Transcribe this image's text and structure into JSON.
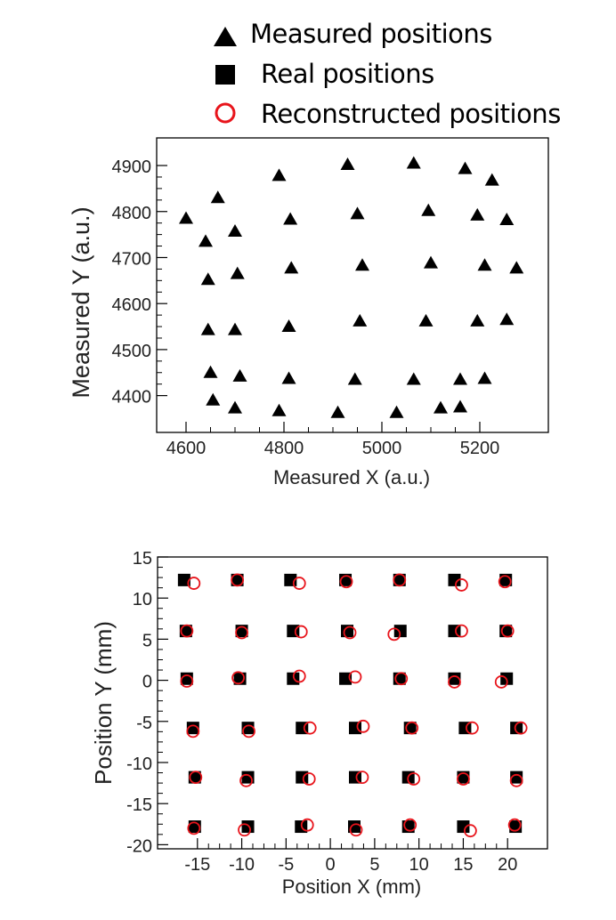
{
  "legend": {
    "items": [
      {
        "label": "Measured positions",
        "marker": "triangle",
        "color": "#000000"
      },
      {
        "label": "Real positions",
        "marker": "square",
        "color": "#000000"
      },
      {
        "label": "Reconstructed positions",
        "marker": "circle-open",
        "color": "#e8141b"
      }
    ]
  },
  "chart_data": [
    {
      "type": "scatter",
      "title": "",
      "xlabel": "Measured X (a.u.)",
      "ylabel": "Measured Y (a.u.)",
      "xlim": [
        4540,
        5340
      ],
      "ylim": [
        4320,
        4960
      ],
      "xticks": [
        4600,
        4800,
        5000,
        5200
      ],
      "yticks": [
        4400,
        4500,
        4600,
        4700,
        4800,
        4900
      ],
      "grid": false,
      "series": [
        {
          "name": "Measured positions",
          "marker": "triangle",
          "color": "#000000",
          "points": [
            [
              4600,
              4785
            ],
            [
              4665,
              4830
            ],
            [
              4640,
              4735
            ],
            [
              4700,
              4757
            ],
            [
              4790,
              4878
            ],
            [
              4930,
              4902
            ],
            [
              5065,
              4905
            ],
            [
              5170,
              4893
            ],
            [
              5225,
              4868
            ],
            [
              4813,
              4783
            ],
            [
              4950,
              4795
            ],
            [
              5095,
              4802
            ],
            [
              5195,
              4792
            ],
            [
              5255,
              4782
            ],
            [
              4645,
              4652
            ],
            [
              4705,
              4665
            ],
            [
              4815,
              4677
            ],
            [
              4960,
              4683
            ],
            [
              5100,
              4688
            ],
            [
              5210,
              4683
            ],
            [
              5275,
              4677
            ],
            [
              4645,
              4543
            ],
            [
              4700,
              4543
            ],
            [
              4810,
              4550
            ],
            [
              4955,
              4562
            ],
            [
              5090,
              4562
            ],
            [
              5195,
              4562
            ],
            [
              5255,
              4565
            ],
            [
              4650,
              4450
            ],
            [
              4710,
              4442
            ],
            [
              4810,
              4437
            ],
            [
              4945,
              4435
            ],
            [
              5065,
              4435
            ],
            [
              5160,
              4435
            ],
            [
              5210,
              4437
            ],
            [
              4655,
              4390
            ],
            [
              4700,
              4373
            ],
            [
              4790,
              4367
            ],
            [
              4910,
              4363
            ],
            [
              5030,
              4363
            ],
            [
              5120,
              4373
            ],
            [
              5160,
              4375
            ]
          ]
        }
      ]
    },
    {
      "type": "scatter",
      "title": "",
      "xlabel": "Position X (mm)",
      "ylabel": "Position Y (mm)",
      "xlim": [
        -19.5,
        24.5
      ],
      "ylim": [
        -20.5,
        15
      ],
      "xticks": [
        -15,
        -10,
        -5,
        0,
        5,
        10,
        15,
        20
      ],
      "yticks": [
        -20,
        -15,
        -10,
        -5,
        0,
        5,
        10,
        15
      ],
      "grid": false,
      "series": [
        {
          "name": "Real positions",
          "marker": "square",
          "color": "#000000",
          "points": [
            [
              -16.5,
              12.2
            ],
            [
              -10.5,
              12.2
            ],
            [
              -4.5,
              12.2
            ],
            [
              1.7,
              12.2
            ],
            [
              7.8,
              12.2
            ],
            [
              14,
              12.2
            ],
            [
              19.8,
              12.2
            ],
            [
              -16.3,
              6
            ],
            [
              -10,
              6
            ],
            [
              -4.2,
              6
            ],
            [
              1.9,
              6
            ],
            [
              7.9,
              6
            ],
            [
              14,
              6
            ],
            [
              19.8,
              6
            ],
            [
              -16.2,
              0.2
            ],
            [
              -10.2,
              0.2
            ],
            [
              -4.2,
              0.2
            ],
            [
              1.7,
              0.2
            ],
            [
              7.8,
              0.2
            ],
            [
              14,
              0.2
            ],
            [
              19.9,
              0.2
            ],
            [
              -15.5,
              -5.8
            ],
            [
              -9.3,
              -5.8
            ],
            [
              -3.2,
              -5.8
            ],
            [
              2.8,
              -5.8
            ],
            [
              9,
              -5.8
            ],
            [
              15.2,
              -5.8
            ],
            [
              21,
              -5.8
            ],
            [
              -15.3,
              -11.8
            ],
            [
              -9.3,
              -11.8
            ],
            [
              -3.2,
              -11.8
            ],
            [
              2.8,
              -11.8
            ],
            [
              8.8,
              -11.8
            ],
            [
              15,
              -11.8
            ],
            [
              21,
              -11.8
            ],
            [
              -15.3,
              -17.8
            ],
            [
              -9.3,
              -17.8
            ],
            [
              -3.3,
              -17.8
            ],
            [
              2.7,
              -17.8
            ],
            [
              8.8,
              -17.8
            ],
            [
              15,
              -17.8
            ],
            [
              20.9,
              -17.8
            ]
          ]
        },
        {
          "name": "Reconstructed positions",
          "marker": "circle-open",
          "color": "#e8141b",
          "points": [
            [
              -15.4,
              11.8
            ],
            [
              -10.5,
              12.2
            ],
            [
              -3.5,
              11.8
            ],
            [
              1.8,
              12
            ],
            [
              7.8,
              12.2
            ],
            [
              14.8,
              11.6
            ],
            [
              19.7,
              12
            ],
            [
              -16.2,
              6
            ],
            [
              -10,
              5.8
            ],
            [
              -3.3,
              5.9
            ],
            [
              2.2,
              5.8
            ],
            [
              7.2,
              5.6
            ],
            [
              14.8,
              6
            ],
            [
              20,
              6
            ],
            [
              -16.2,
              -0.1
            ],
            [
              -10.4,
              0.3
            ],
            [
              -3.5,
              0.5
            ],
            [
              2.8,
              0.4
            ],
            [
              8,
              0.2
            ],
            [
              14,
              -0.2
            ],
            [
              19.3,
              -0.2
            ],
            [
              -15.5,
              -6.2
            ],
            [
              -9.2,
              -6.2
            ],
            [
              -2.3,
              -5.8
            ],
            [
              3.7,
              -5.6
            ],
            [
              9.2,
              -5.8
            ],
            [
              16,
              -5.8
            ],
            [
              21.5,
              -5.8
            ],
            [
              -15.2,
              -11.8
            ],
            [
              -9.5,
              -12.2
            ],
            [
              -2.4,
              -12
            ],
            [
              3.6,
              -11.8
            ],
            [
              9.4,
              -12
            ],
            [
              15,
              -12
            ],
            [
              21,
              -12.2
            ],
            [
              -15.4,
              -18
            ],
            [
              -9.7,
              -18.2
            ],
            [
              -2.6,
              -17.6
            ],
            [
              2.9,
              -18.2
            ],
            [
              9,
              -17.6
            ],
            [
              15.8,
              -18.3
            ],
            [
              20.8,
              -17.6
            ]
          ]
        }
      ]
    }
  ]
}
